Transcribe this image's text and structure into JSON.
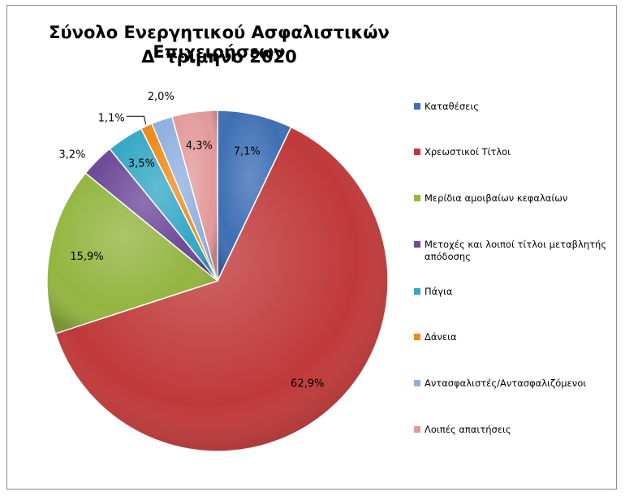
{
  "chart_data": {
    "type": "pie",
    "title": "Σύνολο Ενεργητικού Ασφαλιστικών Επιχειρήσεων",
    "subtitle": "Δ' τρίμηνο 2020",
    "slices": [
      {
        "label": "Καταθέσεις",
        "value": 7.1,
        "display": "7,1%",
        "color": "#3d6fb4"
      },
      {
        "label": "Χρεωστικοί Τίτλοι",
        "value": 62.9,
        "display": "62,9%",
        "color": "#c0393a"
      },
      {
        "label": "Μερίδια αμοιβαίων κεφαλαίων",
        "value": 15.9,
        "display": "15,9%",
        "color": "#93b540"
      },
      {
        "label": "Μετοχές και λοιποί τίτλοι μεταβλητής απόδοσης",
        "value": 3.2,
        "display": "3,2%",
        "color": "#6e4a99"
      },
      {
        "label": "Πάγια",
        "value": 3.5,
        "display": "3,5%",
        "color": "#36a8c6"
      },
      {
        "label": "Δάνεια",
        "value": 1.1,
        "display": "1,1%",
        "color": "#f08a1c"
      },
      {
        "label": "Αντασφαλιστές/Αντασφαλιζόμενοι",
        "value": 2.0,
        "display": "2,0%",
        "color": "#8fb0e0"
      },
      {
        "label": "Λοιπές απαιτήσεις",
        "value": 4.3,
        "display": "4,3%",
        "color": "#e29a99"
      }
    ],
    "legend_position": "right",
    "start_angle": "12 o'clock",
    "direction": "clockwise"
  }
}
